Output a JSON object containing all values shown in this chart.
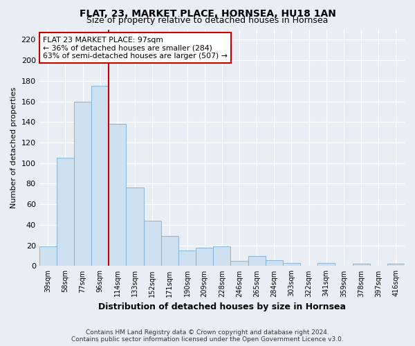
{
  "title": "FLAT, 23, MARKET PLACE, HORNSEA, HU18 1AN",
  "subtitle": "Size of property relative to detached houses in Hornsea",
  "xlabel": "Distribution of detached houses by size in Hornsea",
  "ylabel": "Number of detached properties",
  "categories": [
    "39sqm",
    "58sqm",
    "77sqm",
    "96sqm",
    "114sqm",
    "133sqm",
    "152sqm",
    "171sqm",
    "190sqm",
    "209sqm",
    "228sqm",
    "246sqm",
    "265sqm",
    "284sqm",
    "303sqm",
    "322sqm",
    "341sqm",
    "359sqm",
    "378sqm",
    "397sqm",
    "416sqm"
  ],
  "values": [
    19,
    105,
    160,
    175,
    138,
    76,
    44,
    29,
    15,
    18,
    19,
    5,
    10,
    6,
    3,
    0,
    3,
    0,
    2,
    0,
    2
  ],
  "bar_color": "#cce0f0",
  "bar_edge_color": "#7aadd4",
  "vline_x": 3.5,
  "vline_color": "#cc0000",
  "annotation_text": "FLAT 23 MARKET PLACE: 97sqm\n← 36% of detached houses are smaller (284)\n63% of semi-detached houses are larger (507) →",
  "annotation_box_color": "#ffffff",
  "annotation_box_edge_color": "#cc0000",
  "ylim": [
    0,
    230
  ],
  "yticks": [
    0,
    20,
    40,
    60,
    80,
    100,
    120,
    140,
    160,
    180,
    200,
    220
  ],
  "footer1": "Contains HM Land Registry data © Crown copyright and database right 2024.",
  "footer2": "Contains public sector information licensed under the Open Government Licence v3.0.",
  "bg_color": "#e8eef4",
  "plot_bg_color": "#e8eef4",
  "grid_color": "#ffffff",
  "title_fontsize": 10,
  "subtitle_fontsize": 9,
  "xlabel_fontsize": 9,
  "ylabel_fontsize": 8,
  "tick_fontsize": 8,
  "xtick_fontsize": 7,
  "footer_fontsize": 6.5
}
